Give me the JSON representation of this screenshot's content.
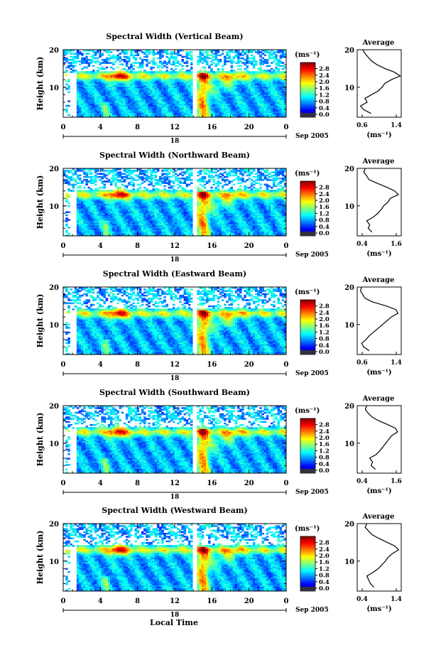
{
  "figure": {
    "xlabel": "Local Time",
    "date_label": "Sep 2005",
    "day_label": "18"
  },
  "chart_data": [
    {
      "type": "heatmap",
      "title": "Spectral Width (Vertical Beam)",
      "ylabel": "Height (km)",
      "x_ticks": [
        "0",
        "4",
        "8",
        "12",
        "16",
        "20",
        "0"
      ],
      "y_ticks": [
        "10",
        "20"
      ],
      "xlim": [
        0,
        24
      ],
      "ylim": [
        2,
        20
      ],
      "colorbar": {
        "unit": "(ms⁻¹)",
        "ticks": [
          "2.8",
          "2.4",
          "2.0",
          "1.6",
          "1.2",
          "0.8",
          "0.4",
          "0.0"
        ],
        "range": [
          0.0,
          3.0
        ]
      },
      "average": {
        "title": "Average",
        "xlabel": "(ms⁻¹)",
        "x_ticks": [
          "0.6",
          "1.4"
        ],
        "xlim": [
          0.6,
          1.4
        ],
        "y_ticks": [
          "10",
          "20"
        ],
        "heights": [
          3,
          4,
          5,
          6,
          7,
          8,
          9,
          10,
          11,
          12,
          13,
          14,
          15,
          16,
          17,
          18,
          19,
          20
        ],
        "values": [
          0.85,
          0.72,
          0.66,
          0.78,
          0.74,
          0.86,
          0.98,
          1.05,
          1.1,
          1.22,
          1.38,
          1.28,
          1.1,
          0.96,
          0.86,
          0.8,
          0.74,
          0.7
        ]
      }
    },
    {
      "type": "heatmap",
      "title": "Spectral Width (Northward Beam)",
      "ylabel": "Height (km)",
      "x_ticks": [
        "0",
        "4",
        "8",
        "12",
        "16",
        "20",
        "0"
      ],
      "y_ticks": [
        "10",
        "20"
      ],
      "xlim": [
        0,
        24
      ],
      "ylim": [
        2,
        20
      ],
      "colorbar": {
        "unit": "(ms⁻¹)",
        "ticks": [
          "2.8",
          "2.4",
          "2.0",
          "1.6",
          "1.2",
          "0.8",
          "0.4",
          "0.0"
        ],
        "range": [
          0.0,
          3.0
        ]
      },
      "average": {
        "title": "Average",
        "xlabel": "(ms⁻¹)",
        "x_ticks": [
          "0.4",
          "1.6"
        ],
        "xlim": [
          0.4,
          1.6
        ],
        "y_ticks": [
          "10",
          "20"
        ],
        "heights": [
          3,
          4,
          5,
          6,
          7,
          8,
          9,
          10,
          11,
          12,
          13,
          14,
          15,
          16,
          17,
          18,
          19,
          20
        ],
        "values": [
          0.8,
          0.7,
          0.74,
          0.66,
          0.84,
          0.96,
          1.05,
          1.12,
          1.24,
          1.3,
          1.52,
          1.42,
          1.2,
          0.95,
          0.72,
          0.66,
          0.58,
          0.62
        ]
      }
    },
    {
      "type": "heatmap",
      "title": "Spectral Width (Eastward Beam)",
      "ylabel": "Height (km)",
      "x_ticks": [
        "0",
        "4",
        "8",
        "12",
        "16",
        "20",
        "0"
      ],
      "y_ticks": [
        "10",
        "20"
      ],
      "xlim": [
        0,
        24
      ],
      "ylim": [
        2,
        20
      ],
      "colorbar": {
        "unit": "(ms⁻¹)",
        "ticks": [
          "2.8",
          "2.4",
          "2.0",
          "1.6",
          "1.2",
          "0.8",
          "0.4",
          "0.0"
        ],
        "range": [
          0.0,
          3.0
        ]
      },
      "average": {
        "title": "Average",
        "xlabel": "(ms⁻¹)",
        "x_ticks": [
          "0.6",
          "1.4"
        ],
        "xlim": [
          0.6,
          1.4
        ],
        "y_ticks": [
          "10",
          "20"
        ],
        "heights": [
          3,
          4,
          5,
          6,
          7,
          8,
          9,
          10,
          11,
          12,
          13,
          14,
          15,
          16,
          17,
          18,
          19,
          20
        ],
        "values": [
          0.82,
          0.72,
          0.68,
          0.76,
          0.82,
          0.9,
          0.98,
          1.06,
          1.14,
          1.22,
          1.34,
          1.3,
          1.12,
          0.88,
          0.74,
          0.7,
          0.66,
          0.68
        ]
      }
    },
    {
      "type": "heatmap",
      "title": "Spectral Width (Southward Beam)",
      "ylabel": "Height (km)",
      "x_ticks": [
        "0",
        "4",
        "8",
        "12",
        "16",
        "20",
        "0"
      ],
      "y_ticks": [
        "10",
        "20"
      ],
      "xlim": [
        0,
        24
      ],
      "ylim": [
        2,
        20
      ],
      "colorbar": {
        "unit": "(ms⁻¹)",
        "ticks": [
          "2.8",
          "2.4",
          "2.0",
          "1.6",
          "1.2",
          "0.8",
          "0.4",
          "0.0"
        ],
        "range": [
          0.0,
          3.0
        ]
      },
      "average": {
        "title": "Average",
        "xlabel": "(ms⁻¹)",
        "x_ticks": [
          "0.4",
          "1.6"
        ],
        "xlim": [
          0.4,
          1.6
        ],
        "y_ticks": [
          "10",
          "20"
        ],
        "heights": [
          3,
          4,
          5,
          6,
          7,
          8,
          9,
          10,
          11,
          12,
          13,
          14,
          15,
          16,
          17,
          18,
          19,
          20
        ],
        "values": [
          0.9,
          0.78,
          0.82,
          0.74,
          0.92,
          1.02,
          1.1,
          1.18,
          1.26,
          1.34,
          1.5,
          1.44,
          1.22,
          0.98,
          0.8,
          0.7,
          0.62,
          0.66
        ]
      }
    },
    {
      "type": "heatmap",
      "title": "Spectral Width (Westward Beam)",
      "ylabel": "Height (km)",
      "x_ticks": [
        "0",
        "4",
        "8",
        "12",
        "16",
        "20",
        "0"
      ],
      "y_ticks": [
        "10",
        "20"
      ],
      "xlim": [
        0,
        24
      ],
      "ylim": [
        2,
        20
      ],
      "colorbar": {
        "unit": "(ms⁻¹)",
        "ticks": [
          "2.8",
          "2.4",
          "2.0",
          "1.6",
          "1.2",
          "0.8",
          "0.4",
          "0.0"
        ],
        "range": [
          0.0,
          3.0
        ]
      },
      "average": {
        "title": "Average",
        "xlabel": "(ms⁻¹)",
        "x_ticks": [
          "0.4",
          "1.4"
        ],
        "xlim": [
          0.4,
          1.4
        ],
        "y_ticks": [
          "10",
          "20"
        ],
        "heights": [
          3,
          4,
          5,
          6,
          7,
          8,
          9,
          10,
          11,
          12,
          13,
          14,
          15,
          16,
          17,
          18,
          19,
          20
        ],
        "values": [
          0.78,
          0.7,
          0.66,
          0.62,
          0.76,
          0.88,
          0.96,
          1.04,
          1.1,
          1.2,
          1.34,
          1.26,
          1.08,
          0.9,
          0.74,
          0.66,
          0.58,
          0.62
        ]
      }
    }
  ]
}
